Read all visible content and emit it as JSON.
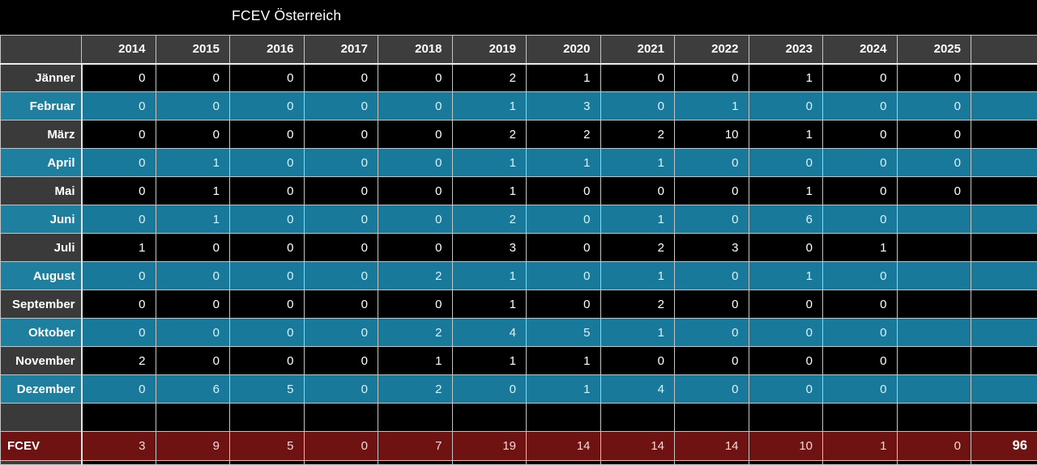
{
  "title": "FCEV Österreich",
  "colors": {
    "background": "#000000",
    "header_bg": "#3d3d3d",
    "dark_row_bg": "#000000",
    "dark_label_bg": "#3a3a3a",
    "teal_row_bg": "#18799b",
    "teal_label_bg": "#1f7f9f",
    "total_row_bg": "#6e1212",
    "grid_border": "#c4c4c4"
  },
  "table": {
    "corner_label": "",
    "years": [
      "2014",
      "2015",
      "2016",
      "2017",
      "2018",
      "2019",
      "2020",
      "2021",
      "2022",
      "2023",
      "2024",
      "2025"
    ],
    "months": [
      {
        "label": "Jänner",
        "values": [
          "0",
          "0",
          "0",
          "0",
          "0",
          "2",
          "1",
          "0",
          "0",
          "1",
          "0",
          "0"
        ]
      },
      {
        "label": "Februar",
        "values": [
          "0",
          "0",
          "0",
          "0",
          "0",
          "1",
          "3",
          "0",
          "1",
          "0",
          "0",
          "0"
        ]
      },
      {
        "label": "März",
        "values": [
          "0",
          "0",
          "0",
          "0",
          "0",
          "2",
          "2",
          "2",
          "10",
          "1",
          "0",
          "0"
        ]
      },
      {
        "label": "April",
        "values": [
          "0",
          "1",
          "0",
          "0",
          "0",
          "1",
          "1",
          "1",
          "0",
          "0",
          "0",
          "0"
        ]
      },
      {
        "label": "Mai",
        "values": [
          "0",
          "1",
          "0",
          "0",
          "0",
          "1",
          "0",
          "0",
          "0",
          "1",
          "0",
          "0"
        ]
      },
      {
        "label": "Juni",
        "values": [
          "0",
          "1",
          "0",
          "0",
          "0",
          "2",
          "0",
          "1",
          "0",
          "6",
          "0",
          ""
        ]
      },
      {
        "label": "Juli",
        "values": [
          "1",
          "0",
          "0",
          "0",
          "0",
          "3",
          "0",
          "2",
          "3",
          "0",
          "1",
          ""
        ]
      },
      {
        "label": "August",
        "values": [
          "0",
          "0",
          "0",
          "0",
          "2",
          "1",
          "0",
          "1",
          "0",
          "1",
          "0",
          ""
        ]
      },
      {
        "label": "September",
        "values": [
          "0",
          "0",
          "0",
          "0",
          "0",
          "1",
          "0",
          "2",
          "0",
          "0",
          "0",
          ""
        ]
      },
      {
        "label": "Oktober",
        "values": [
          "0",
          "0",
          "0",
          "0",
          "2",
          "4",
          "5",
          "1",
          "0",
          "0",
          "0",
          ""
        ]
      },
      {
        "label": "November",
        "values": [
          "2",
          "0",
          "0",
          "0",
          "1",
          "1",
          "1",
          "0",
          "0",
          "0",
          "0",
          ""
        ]
      },
      {
        "label": "Dezember",
        "values": [
          "0",
          "6",
          "5",
          "0",
          "2",
          "0",
          "1",
          "4",
          "0",
          "0",
          "0",
          ""
        ]
      }
    ],
    "total_row": {
      "label": "FCEV",
      "values": [
        "3",
        "9",
        "5",
        "0",
        "7",
        "19",
        "14",
        "14",
        "14",
        "10",
        "1",
        "0"
      ],
      "grand_total": "96"
    }
  }
}
